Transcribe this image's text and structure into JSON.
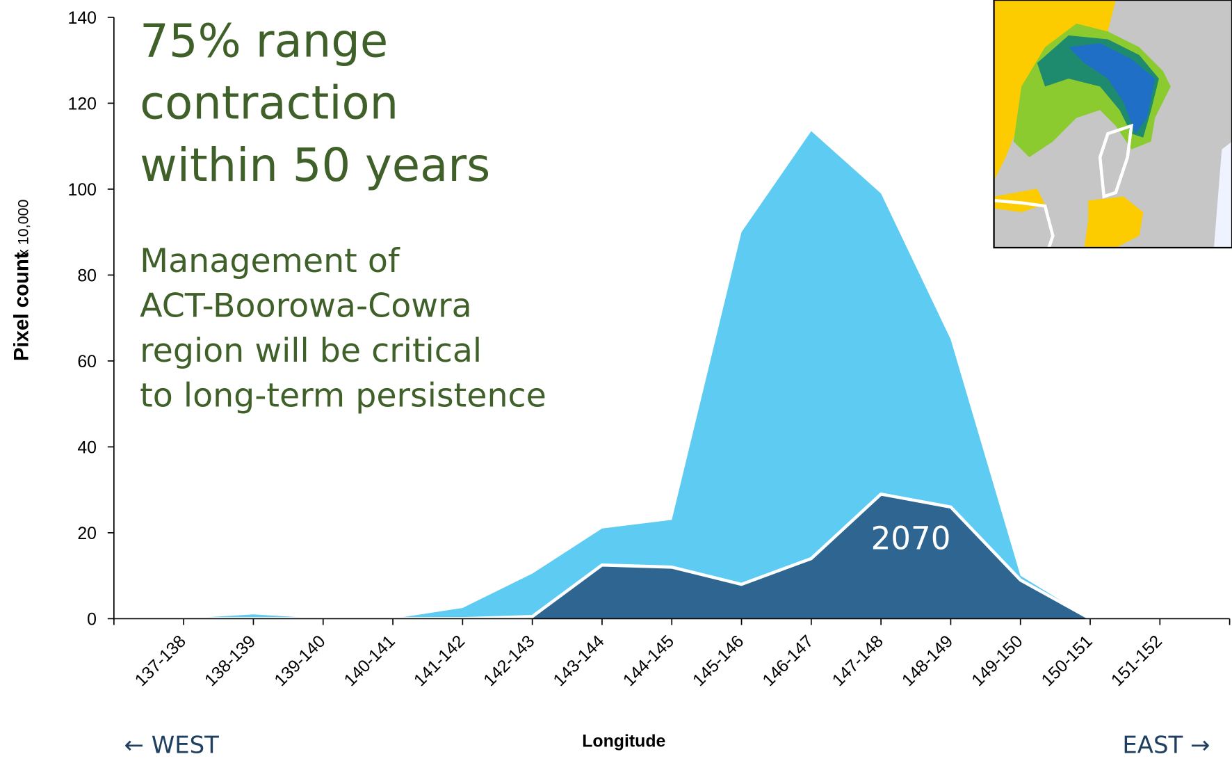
{
  "chart_data": {
    "type": "area",
    "headline": [
      "75% range",
      "contraction",
      "within 50 years"
    ],
    "note": [
      "Management of",
      "ACT-Boorowa-Cowra",
      "region will be critical",
      "to long-term persistence"
    ],
    "y_label": "Pixel count",
    "y_unit": "x 10,000",
    "x_label": "Longitude",
    "west_label": "← WEST",
    "east_label": "EAST →",
    "categories": [
      "137-138",
      "138-139",
      "139-140",
      "140-141",
      "141-142",
      "142-143",
      "143-144",
      "144-145",
      "145-146",
      "146-147",
      "147-148",
      "148-149",
      "149-150",
      "150-151",
      "151-152"
    ],
    "series": [
      {
        "color": "#5ecbf3",
        "values": [
          0,
          1,
          0,
          0,
          2.5,
          10.5,
          21,
          23,
          90,
          113.5,
          99,
          65,
          10,
          0,
          0
        ]
      },
      {
        "name": "2070",
        "color": "#2e6591",
        "values": [
          0,
          0,
          0,
          0,
          0,
          0.5,
          12.5,
          12,
          8,
          14,
          29,
          26,
          9,
          0,
          0
        ]
      }
    ],
    "ylim": [
      0,
      140
    ],
    "yticks": [
      0,
      20,
      40,
      60,
      80,
      100,
      120,
      140
    ]
  }
}
